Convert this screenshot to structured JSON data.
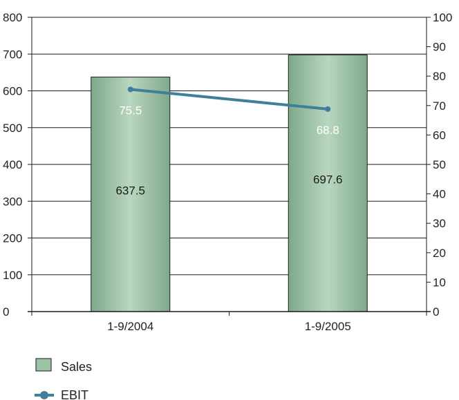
{
  "chart_data": {
    "type": "bar",
    "categories": [
      "1-9/2004",
      "1-9/2005"
    ],
    "series": [
      {
        "name": "Sales",
        "type": "bar",
        "axis": "left",
        "values": [
          637.5,
          697.6
        ],
        "labels": [
          "637.5",
          "697.6"
        ],
        "color": "#9dc3a6"
      },
      {
        "name": "EBIT",
        "type": "line",
        "axis": "right",
        "values": [
          75.5,
          68.8
        ],
        "labels": [
          "75.5",
          "68.8"
        ],
        "color": "#3f7f9a"
      }
    ],
    "y_left": {
      "min": 0,
      "max": 800,
      "ticks": [
        "0",
        "100",
        "200",
        "300",
        "400",
        "500",
        "600",
        "700",
        "800"
      ]
    },
    "y_right": {
      "min": 0,
      "max": 100,
      "ticks": [
        "0",
        "10",
        "20",
        "30",
        "40",
        "50",
        "60",
        "70",
        "80",
        "90",
        "100"
      ]
    },
    "grid": true,
    "legend_position": "bottom-left",
    "title": "",
    "xlabel": "",
    "ylabel": ""
  }
}
